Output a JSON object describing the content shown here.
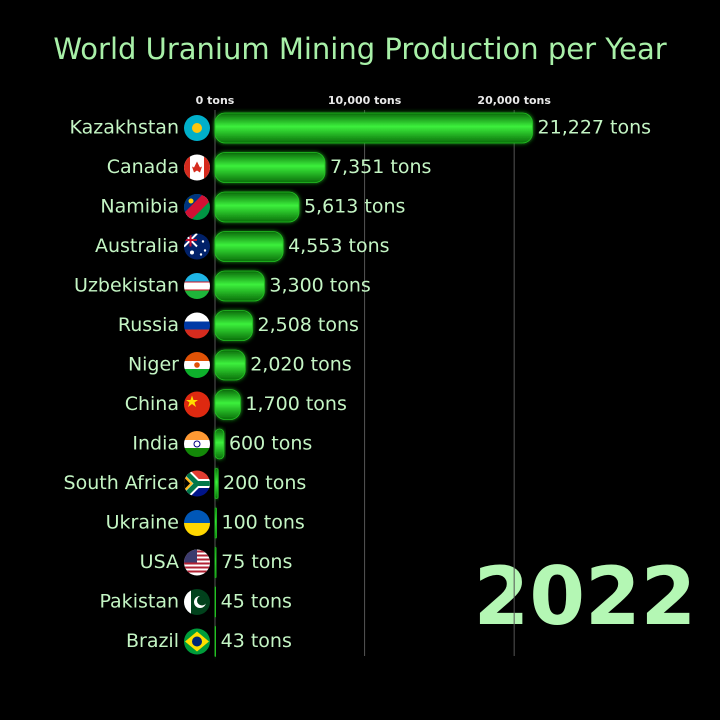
{
  "chart_data": {
    "type": "bar",
    "title": "World Uranium Mining Production per Year",
    "year": "2022",
    "categories": [
      "Kazakhstan",
      "Canada",
      "Namibia",
      "Australia",
      "Uzbekistan",
      "Russia",
      "Niger",
      "China",
      "India",
      "South Africa",
      "Ukraine",
      "USA",
      "Pakistan",
      "Brazil"
    ],
    "values": [
      21227,
      7351,
      5613,
      4553,
      3300,
      2508,
      2020,
      1700,
      600,
      200,
      100,
      75,
      45,
      43
    ],
    "value_labels": [
      "21,227 tons",
      "7,351 tons",
      "5,613 tons",
      "4,553 tons",
      "3,300 tons",
      "2,508 tons",
      "2,020 tons",
      "1,700 tons",
      "600 tons",
      "200 tons",
      "100 tons",
      "75 tons",
      "45 tons",
      "43 tons"
    ],
    "color": "#22c022",
    "xlim": [
      0,
      24000
    ],
    "xticks": [
      {
        "value": 0,
        "label": "0 tons"
      },
      {
        "value": 10000,
        "label": "10,000 tons"
      },
      {
        "value": 20000,
        "label": "20,000 tons"
      }
    ],
    "grid": true
  }
}
